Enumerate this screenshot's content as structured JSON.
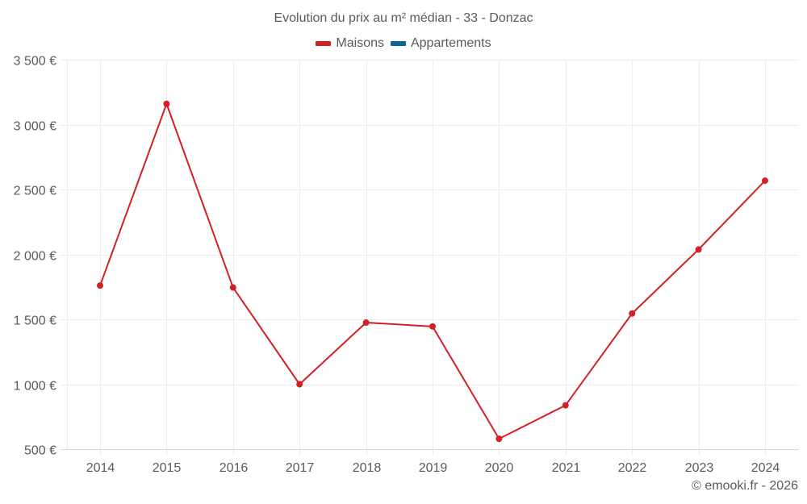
{
  "chart_data": {
    "type": "line",
    "title": "Evolution du prix au m² médian - 33 - Donzac",
    "xlabel": "",
    "ylabel": "",
    "categories": [
      "2014",
      "2015",
      "2016",
      "2017",
      "2018",
      "2019",
      "2020",
      "2021",
      "2022",
      "2023",
      "2024"
    ],
    "series": [
      {
        "name": "Maisons",
        "color": "#d32027",
        "values": [
          1760,
          3160,
          1745,
          1000,
          1475,
          1445,
          580,
          838,
          1545,
          2038,
          2568
        ]
      },
      {
        "name": "Appartements",
        "color": "#0b6599",
        "values": []
      }
    ],
    "ylim": [
      500,
      3500
    ],
    "yticks": [
      500,
      1000,
      1500,
      2000,
      2500,
      3000,
      3500
    ],
    "ytick_labels": [
      "500 €",
      "1 000 €",
      "1 500 €",
      "2 000 €",
      "2 500 €",
      "3 000 €",
      "3 500 €"
    ],
    "grid": true,
    "legend_position": "top"
  },
  "legend": [
    {
      "label": "Maisons",
      "color": "#d32027"
    },
    {
      "label": "Appartements",
      "color": "#0b6599"
    }
  ],
  "footer": "© emooki.fr - 2026"
}
